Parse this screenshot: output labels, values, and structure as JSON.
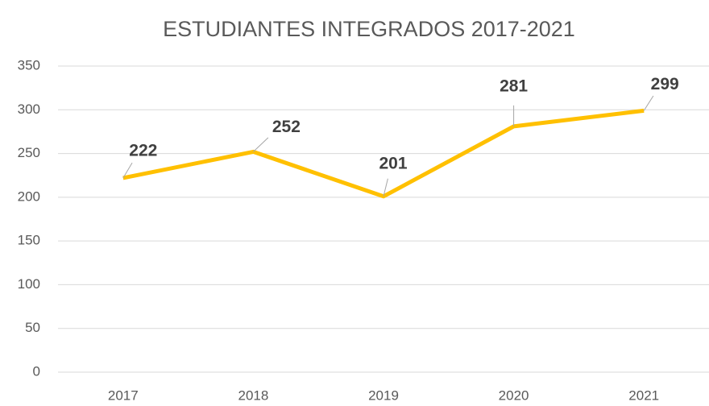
{
  "chart_data": {
    "type": "line",
    "title": "ESTUDIANTES INTEGRADOS 2017-2021",
    "categories": [
      "2017",
      "2018",
      "2019",
      "2020",
      "2021"
    ],
    "series": [
      {
        "color": "#FFC000",
        "values": [
          222,
          252,
          201,
          281,
          299
        ]
      }
    ],
    "ylim": [
      0,
      350
    ],
    "yticks": [
      0,
      50,
      100,
      150,
      200,
      250,
      300,
      350
    ],
    "grid": true
  }
}
